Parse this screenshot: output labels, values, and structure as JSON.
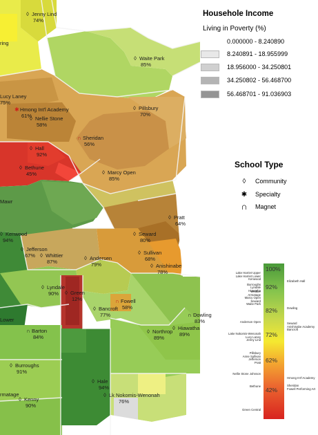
{
  "legend": {
    "title": "Househole Income",
    "subtitle": "Living in Poverty (%)",
    "income_classes": [
      {
        "label": "0.000000 - 8.240890",
        "color": "#ffffff"
      },
      {
        "label": "8.240891 - 18.955999",
        "color": "#e8e8e8"
      },
      {
        "label": "18.956000 - 34.250801",
        "color": "#d0d0d0"
      },
      {
        "label": "34.250802 - 56.468700",
        "color": "#b4b4b4"
      },
      {
        "label": "56.468701 - 91.036903",
        "color": "#949494"
      }
    ],
    "school_type_title": "School Type",
    "school_types": [
      {
        "label": "Community",
        "icon": "diamond-icon",
        "glyph": "◊"
      },
      {
        "label": "Specialty",
        "icon": "asterisk-icon",
        "glyph": "✱"
      },
      {
        "label": "Magnet",
        "icon": "magnet-icon",
        "glyph": "∩"
      }
    ],
    "ramp_labels": [
      "100%",
      "92%",
      "82%",
      "72%",
      "62%",
      "42%"
    ]
  },
  "ramp_schools": {
    "g92": [
      "Lake Harriet Upper",
      "Lake Harriet Lower",
      "Kenwood",
      "Burroughs",
      "Lyndale",
      "Hiawatha"
    ],
    "g92r": [
      "Elizabeth Hall"
    ],
    "g87": [
      "Whittier",
      "Armatage",
      "Marcy Open",
      "Seward",
      "Waite Park"
    ],
    "g82": [
      "Dowling"
    ],
    "g80": [
      "Anderson Open"
    ],
    "g72a": [
      "Lake Nokomis-Wenonah",
      "Lucy Laney",
      "Jenny Lind"
    ],
    "g72r": [
      "Seward",
      "Anishinabe Academy",
      "Bancroft"
    ],
    "g62": [
      "Pillsbury",
      "Anne Sullivan",
      "Jefferson",
      "Pratt"
    ],
    "g52": [
      "Nellie Stone Johnson"
    ],
    "g52r": [
      "Hmong Int'l Academy"
    ],
    "g42": [
      "Bethune"
    ],
    "g42r": [
      "Sheridan",
      "Fowell Performing Art"
    ],
    "g12": [
      "Green Central"
    ]
  },
  "schools": [
    {
      "name": "Jenny Lind",
      "pct": "74%",
      "type": "community"
    },
    {
      "name": "ring",
      "pct": "",
      "type": "community"
    },
    {
      "name": "Waite Park",
      "pct": "85%",
      "type": "community"
    },
    {
      "name": "Lucy Laney",
      "pct": "75%",
      "type": "community"
    },
    {
      "name": "Hmong Int'l Academy",
      "pct": "61%",
      "type": "specialty"
    },
    {
      "name": "Nellie Stone",
      "pct": "58%",
      "type": "community"
    },
    {
      "name": "Pillsbury",
      "pct": "70%",
      "type": "community"
    },
    {
      "name": "Sheridan",
      "pct": "56%",
      "type": "magnet"
    },
    {
      "name": "Hall",
      "pct": "92%",
      "type": "community"
    },
    {
      "name": "Bethune",
      "pct": "45%",
      "type": "community"
    },
    {
      "name": "Marcy Open",
      "pct": "85%",
      "type": "community"
    },
    {
      "name": "Mawr",
      "pct": "",
      "type": "community"
    },
    {
      "name": "Pratt",
      "pct": "64%",
      "type": "community"
    },
    {
      "name": "Kenwood",
      "pct": "94%",
      "type": "community"
    },
    {
      "name": "Seward",
      "pct": "80%",
      "type": "community"
    },
    {
      "name": "Jefferson",
      "pct": "67%",
      "type": "community"
    },
    {
      "name": "Whittier",
      "pct": "87%",
      "type": "community"
    },
    {
      "name": "Sullivan",
      "pct": "68%",
      "type": "community"
    },
    {
      "name": "Andersen",
      "pct": "79%",
      "type": "community"
    },
    {
      "name": "Anishinabe",
      "pct": "78%",
      "type": "community"
    },
    {
      "name": "Lyndale",
      "pct": "90%",
      "type": "community"
    },
    {
      "name": "Green",
      "pct": "12%",
      "type": "community"
    },
    {
      "name": "Fowell",
      "pct": "58%",
      "type": "magnet"
    },
    {
      "name": "Bancroft",
      "pct": "77%",
      "type": "community"
    },
    {
      "name": "Dowling",
      "pct": "83%",
      "type": "magnet"
    },
    {
      "name": "Lower",
      "pct": "",
      "type": "community"
    },
    {
      "name": "Northrop",
      "pct": "89%",
      "type": "community"
    },
    {
      "name": "Hiawatha",
      "pct": "89%",
      "type": "community"
    },
    {
      "name": "Barton",
      "pct": "84%",
      "type": "magnet"
    },
    {
      "name": "Burroughs",
      "pct": "91%",
      "type": "community"
    },
    {
      "name": "Hale",
      "pct": "94%",
      "type": "community"
    },
    {
      "name": "rmatage",
      "pct": "",
      "type": "community"
    },
    {
      "name": "Kenny",
      "pct": "90%",
      "type": "community"
    },
    {
      "name": "Lk Nokomis-Wenonah",
      "pct": "76%",
      "type": "community"
    }
  ]
}
